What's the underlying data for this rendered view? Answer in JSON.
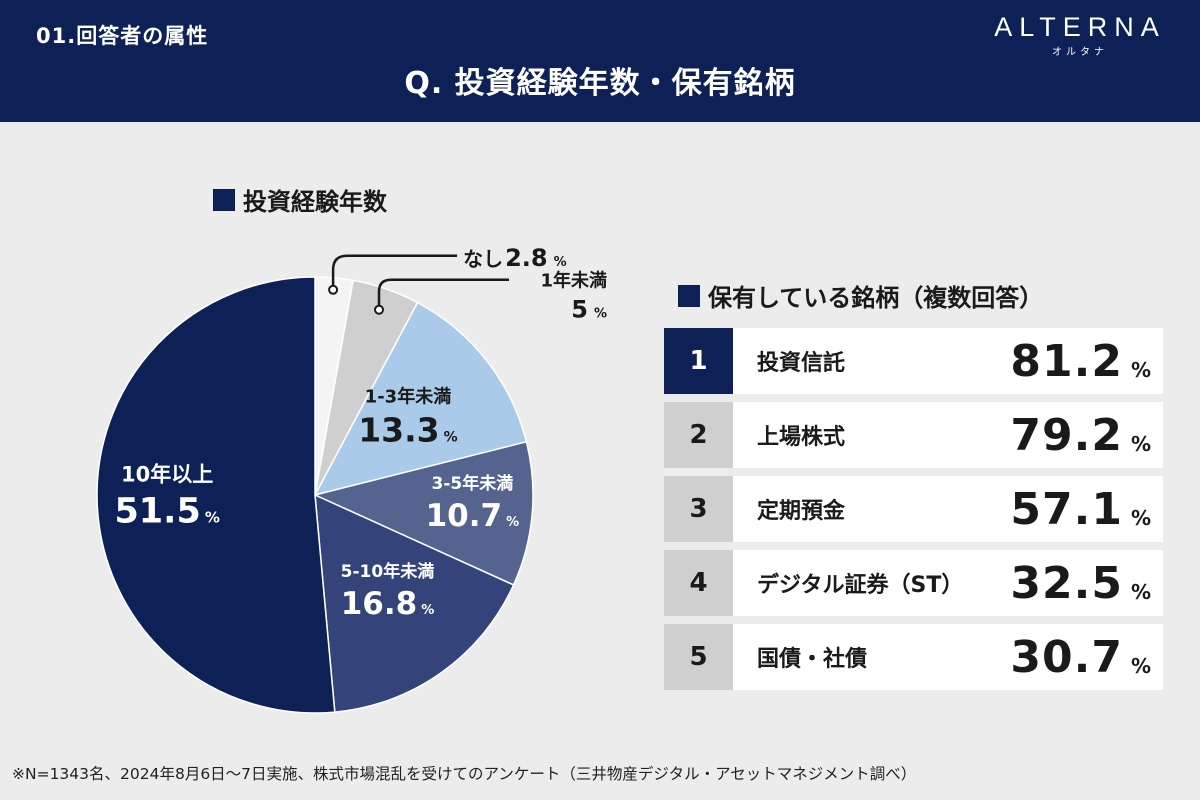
{
  "header": {
    "section_label": "01.回答者の属性",
    "title": "Q. 投資経験年数・保有銘柄",
    "logo_main": "ALTERNA",
    "logo_sub": "オルタナ"
  },
  "left": {
    "heading": "投資経験年数"
  },
  "right": {
    "heading": "保有している銘柄（複数回答）",
    "items": [
      {
        "rank": "1",
        "label": "投資信託",
        "value": "81.2",
        "unit": "%"
      },
      {
        "rank": "2",
        "label": "上場株式",
        "value": "79.2",
        "unit": "%"
      },
      {
        "rank": "3",
        "label": "定期預金",
        "value": "57.1",
        "unit": "%"
      },
      {
        "rank": "4",
        "label": "デジタル証券（ST）",
        "value": "32.5",
        "unit": "%"
      },
      {
        "rank": "5",
        "label": "国債・社債",
        "value": "30.7",
        "unit": "%"
      }
    ]
  },
  "chart_data": {
    "type": "pie",
    "title": "投資経験年数",
    "unit": "%",
    "slices": [
      {
        "label": "なし",
        "value": 2.8,
        "color": "#f4f4f4"
      },
      {
        "label": "1年未満",
        "value": 5,
        "color": "#cfcfcf"
      },
      {
        "label": "1-3年未満",
        "value": 13.3,
        "color": "#a9cbe9"
      },
      {
        "label": "3-5年未満",
        "value": 10.7,
        "color": "#54648f"
      },
      {
        "label": "5-10年未満",
        "value": 16.8,
        "color": "#34447a"
      },
      {
        "label": "10年以上",
        "value": 51.5,
        "color": "#0d2157"
      }
    ]
  },
  "footnote": "※N=1343名、2024年8月6日〜7日実施、株式市場混乱を受けてのアンケート（三井物産デジタル・アセットマネジメント調べ）"
}
